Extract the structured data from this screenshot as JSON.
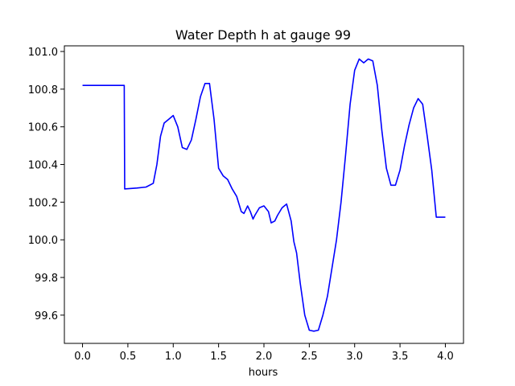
{
  "chart_data": {
    "type": "line",
    "title": "Water Depth h at gauge 99",
    "xlabel": "hours",
    "ylabel": "",
    "xlim": [
      -0.2,
      4.2
    ],
    "ylim": [
      99.45,
      101.03
    ],
    "xticks": [
      "0.0",
      "0.5",
      "1.0",
      "1.5",
      "2.0",
      "2.5",
      "3.0",
      "3.5",
      "4.0"
    ],
    "xtick_values": [
      0.0,
      0.5,
      1.0,
      1.5,
      2.0,
      2.5,
      3.0,
      3.5,
      4.0
    ],
    "yticks": [
      "99.6",
      "99.8",
      "100.0",
      "100.2",
      "100.4",
      "100.6",
      "100.8",
      "101.0"
    ],
    "ytick_values": [
      99.6,
      99.8,
      100.0,
      100.2,
      100.4,
      100.6,
      100.8,
      101.0
    ],
    "grid": false,
    "series": [
      {
        "color": "#0000ff",
        "x": [
          0.0,
          0.2,
          0.46,
          0.465,
          0.6,
          0.7,
          0.78,
          0.82,
          0.86,
          0.9,
          0.95,
          1.0,
          1.05,
          1.1,
          1.15,
          1.2,
          1.25,
          1.3,
          1.35,
          1.4,
          1.45,
          1.5,
          1.55,
          1.6,
          1.65,
          1.7,
          1.75,
          1.78,
          1.82,
          1.85,
          1.88,
          1.9,
          1.95,
          2.0,
          2.05,
          2.08,
          2.12,
          2.15,
          2.2,
          2.25,
          2.3,
          2.33,
          2.36,
          2.4,
          2.45,
          2.5,
          2.55,
          2.6,
          2.65,
          2.7,
          2.75,
          2.8,
          2.85,
          2.9,
          2.95,
          3.0,
          3.05,
          3.1,
          3.15,
          3.2,
          3.25,
          3.3,
          3.35,
          3.4,
          3.45,
          3.5,
          3.55,
          3.6,
          3.65,
          3.7,
          3.75,
          3.8,
          3.85,
          3.9,
          3.95,
          4.0
        ],
        "y": [
          100.82,
          100.82,
          100.82,
          100.27,
          100.275,
          100.28,
          100.3,
          100.4,
          100.55,
          100.62,
          100.64,
          100.66,
          100.6,
          100.49,
          100.48,
          100.53,
          100.64,
          100.76,
          100.83,
          100.83,
          100.64,
          100.38,
          100.34,
          100.32,
          100.27,
          100.23,
          100.15,
          100.14,
          100.18,
          100.15,
          100.11,
          100.13,
          100.17,
          100.18,
          100.15,
          100.09,
          100.1,
          100.13,
          100.17,
          100.19,
          100.1,
          99.99,
          99.93,
          99.77,
          99.6,
          99.52,
          99.515,
          99.52,
          99.6,
          99.7,
          99.85,
          100.0,
          100.2,
          100.45,
          100.72,
          100.9,
          100.96,
          100.94,
          100.96,
          100.95,
          100.82,
          100.58,
          100.38,
          100.29,
          100.29,
          100.37,
          100.5,
          100.61,
          100.7,
          100.75,
          100.72,
          100.55,
          100.37,
          100.12,
          100.12,
          100.12
        ]
      }
    ]
  }
}
